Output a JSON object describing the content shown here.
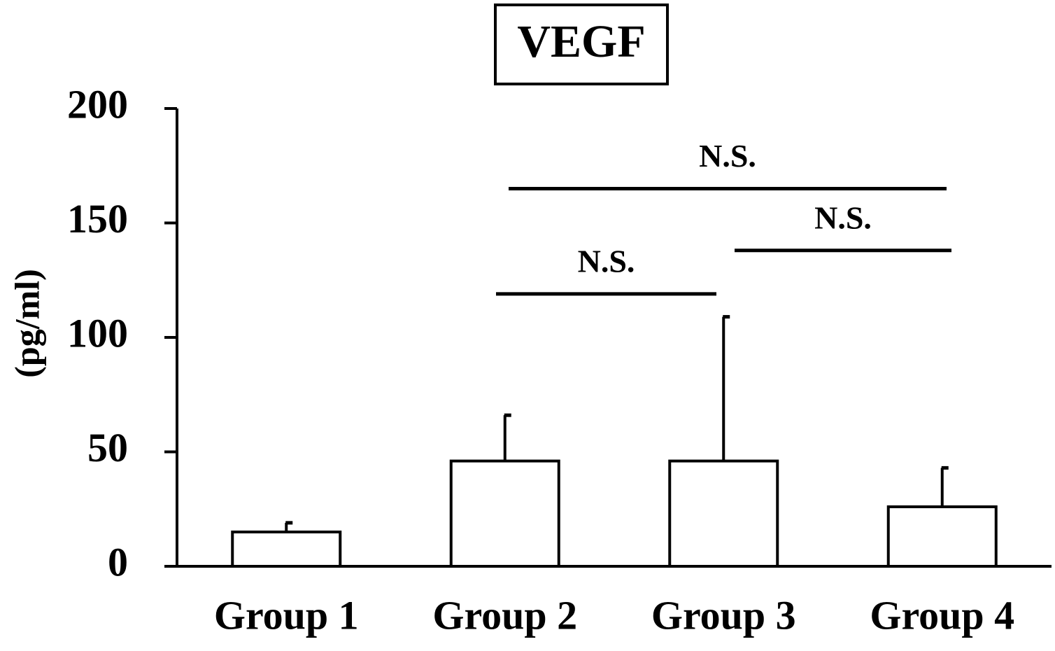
{
  "chart_data": {
    "type": "bar",
    "title": "VEGF",
    "y_label": "(pg/ml)",
    "categories": [
      "Group 1",
      "Group 2",
      "Group 3",
      "Group 4"
    ],
    "values": [
      15,
      46,
      46,
      26
    ],
    "errors": [
      4,
      20,
      63,
      17
    ],
    "color": "#ffffff",
    "ylim": [
      0,
      200
    ],
    "yticks": [
      0,
      50,
      100,
      150,
      200
    ],
    "grid": false,
    "annotations": [
      {
        "text": "N.S.",
        "y": 119
      },
      {
        "text": "N.S.",
        "y": 138
      },
      {
        "text": "N.S.",
        "y": 165
      }
    ]
  }
}
